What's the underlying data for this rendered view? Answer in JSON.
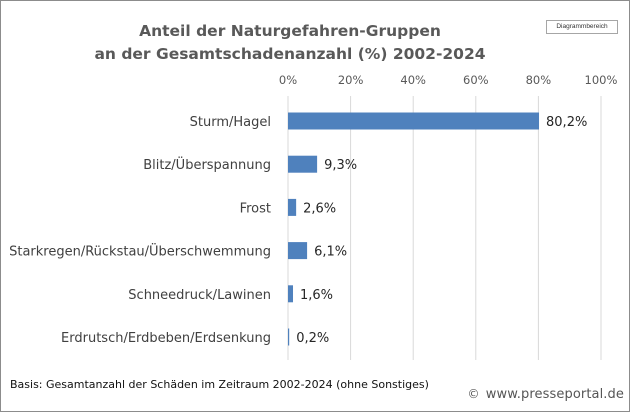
{
  "chart_data": {
    "type": "bar",
    "orientation": "horizontal",
    "title": [
      "Anteil der Naturgefahren-Gruppen",
      "an der Gesamtschadenanzahl (%) 2002-2024"
    ],
    "categories": [
      "Sturm/Hagel",
      "Blitz/Überspannung",
      "Frost",
      "Starkregen/Rückstau/Überschwemmung",
      "Schneedruck/Lawinen",
      "Erdrutsch/Erdbeben/Erdsenkung"
    ],
    "values": [
      80.2,
      9.3,
      2.6,
      6.1,
      1.6,
      0.2
    ],
    "data_labels": [
      "80,2%",
      "9,3%",
      "2,6%",
      "6,1%",
      "1,6%",
      "0,2%"
    ],
    "xlim": [
      0,
      100
    ],
    "x_ticks": [
      0,
      20,
      40,
      60,
      80,
      100
    ],
    "x_tick_labels": [
      "0%",
      "20%",
      "40%",
      "60%",
      "80%",
      "100%"
    ],
    "x_axis_position": "top",
    "grid": "vertical",
    "bar_color": "#4f81bd"
  },
  "chart_area_tag": "Diagrammbereich",
  "footnote": "Basis: Gesamtanzahl der Schäden im Zeitraum 2002-2024 (ohne Sonstiges)",
  "credit": {
    "icon": "copyright-icon",
    "text": "www.presseportal.de"
  }
}
